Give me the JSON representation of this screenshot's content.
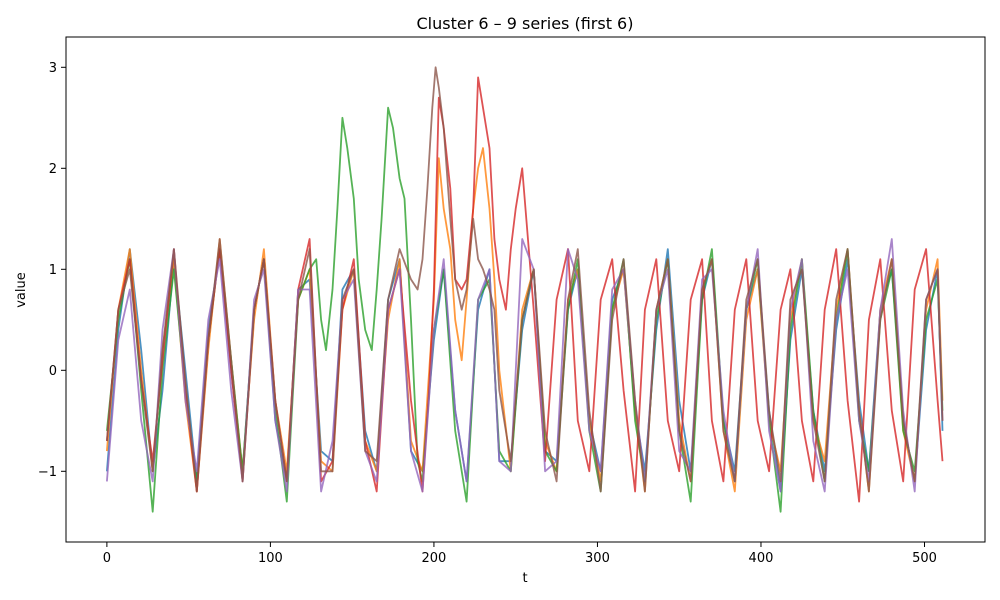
{
  "chart_data": {
    "type": "line",
    "title": "Cluster 6 – 9 series (first 6)",
    "xlabel": "t",
    "ylabel": "value",
    "xlim": [
      -25,
      537
    ],
    "ylim": [
      -1.7,
      3.3
    ],
    "xticks": [
      0,
      100,
      200,
      300,
      400,
      500
    ],
    "yticks": [
      -1,
      0,
      1,
      2,
      3
    ],
    "grid": false,
    "legend": "none",
    "colors": [
      "#1f77b4",
      "#ff7f0e",
      "#2ca02c",
      "#d62728",
      "#9467bd",
      "#8c564b"
    ],
    "line_alpha": 0.8,
    "series": [
      {
        "x": [
          0,
          7,
          14,
          21,
          28,
          34,
          41,
          48,
          55,
          62,
          69,
          76,
          83,
          90,
          96,
          103,
          110,
          117,
          124,
          131,
          138,
          144,
          151,
          158,
          165,
          172,
          179,
          186,
          193,
          200,
          206,
          213,
          220,
          227,
          234,
          240,
          247,
          254,
          261,
          268,
          275,
          282,
          288,
          295,
          302,
          309,
          316,
          323,
          329,
          336,
          343,
          350,
          357,
          364,
          370,
          377,
          384,
          391,
          398,
          405,
          412,
          418,
          425,
          432,
          439,
          446,
          453,
          460,
          466,
          473,
          480,
          487,
          494,
          501,
          508,
          511
        ],
        "y": [
          -1.0,
          0.4,
          1.2,
          0.2,
          -1.0,
          -0.2,
          1.1,
          0.0,
          -1.1,
          0.4,
          1.2,
          0.0,
          -1.0,
          0.6,
          1.1,
          -0.5,
          -1.1,
          0.8,
          0.9,
          -0.8,
          -0.9,
          0.8,
          1.0,
          -0.6,
          -1.0,
          0.7,
          1.1,
          -0.8,
          -1.0,
          0.3,
          1.0,
          -0.4,
          -1.1,
          0.6,
          1.0,
          -0.9,
          -0.9,
          0.4,
          1.0,
          -0.8,
          -0.9,
          0.6,
          1.0,
          -0.5,
          -1.0,
          0.7,
          1.0,
          -0.4,
          -1.0,
          0.4,
          1.2,
          -0.3,
          -1.0,
          0.7,
          1.1,
          -0.5,
          -1.0,
          0.6,
          1.0,
          -0.4,
          -1.2,
          0.3,
          1.0,
          -0.4,
          -1.0,
          0.4,
          1.1,
          -0.3,
          -1.0,
          0.6,
          1.0,
          -0.5,
          -1.1,
          0.4,
          1.0,
          -0.6
        ]
      },
      {
        "x": [
          0,
          7,
          14,
          21,
          28,
          34,
          41,
          48,
          55,
          62,
          69,
          76,
          83,
          90,
          96,
          103,
          110,
          117,
          124,
          131,
          138,
          144,
          151,
          158,
          165,
          172,
          179,
          186,
          193,
          200,
          203,
          206,
          210,
          213,
          217,
          220,
          224,
          227,
          230,
          234,
          237,
          240,
          247,
          254,
          261,
          268,
          275,
          282,
          288,
          295,
          302,
          309,
          316,
          323,
          329,
          336,
          343,
          350,
          357,
          364,
          370,
          377,
          384,
          391,
          398,
          405,
          412,
          418,
          425,
          432,
          439,
          446,
          453,
          460,
          466,
          473,
          480,
          487,
          494,
          501,
          508,
          511
        ],
        "y": [
          -0.8,
          0.6,
          1.2,
          0.0,
          -1.0,
          0.2,
          1.1,
          -0.3,
          -1.2,
          0.2,
          1.3,
          0.1,
          -1.0,
          0.5,
          1.2,
          -0.3,
          -1.0,
          0.7,
          1.0,
          -0.9,
          -1.0,
          0.6,
          1.0,
          -0.7,
          -1.0,
          0.5,
          1.1,
          -0.7,
          -1.0,
          0.7,
          2.1,
          1.6,
          1.2,
          0.5,
          0.1,
          0.7,
          1.6,
          2.0,
          2.2,
          1.6,
          0.9,
          0.0,
          -1.0,
          0.6,
          1.0,
          -0.7,
          -1.0,
          0.7,
          1.0,
          -0.5,
          -1.1,
          0.6,
          1.0,
          -0.4,
          -1.2,
          0.6,
          1.1,
          -0.5,
          -1.1,
          0.8,
          1.1,
          -0.6,
          -1.2,
          0.5,
          1.0,
          -0.5,
          -1.0,
          0.5,
          1.1,
          -0.5,
          -0.9,
          0.6,
          1.2,
          -0.4,
          -1.2,
          0.6,
          1.1,
          -0.6,
          -1.1,
          0.6,
          1.1,
          -0.3
        ]
      },
      {
        "x": [
          0,
          7,
          14,
          21,
          28,
          34,
          41,
          48,
          55,
          62,
          69,
          76,
          83,
          90,
          96,
          103,
          110,
          117,
          124,
          128,
          131,
          134,
          138,
          141,
          144,
          147,
          151,
          154,
          158,
          162,
          165,
          168,
          172,
          175,
          179,
          182,
          186,
          190,
          193,
          200,
          206,
          213,
          220,
          227,
          234,
          240,
          247,
          254,
          261,
          268,
          275,
          282,
          288,
          295,
          302,
          309,
          316,
          323,
          329,
          336,
          343,
          350,
          357,
          364,
          370,
          377,
          384,
          391,
          398,
          405,
          412,
          418,
          425,
          432,
          439,
          446,
          453,
          460,
          466,
          473,
          480,
          487,
          494,
          501,
          508,
          511
        ],
        "y": [
          -0.6,
          0.5,
          1.1,
          -0.2,
          -1.4,
          0.0,
          1.0,
          -0.2,
          -1.1,
          0.3,
          1.2,
          0.1,
          -1.0,
          0.6,
          1.1,
          -0.4,
          -1.3,
          0.7,
          1.0,
          1.1,
          0.5,
          0.2,
          0.8,
          1.6,
          2.5,
          2.2,
          1.7,
          0.9,
          0.4,
          0.2,
          0.8,
          1.5,
          2.6,
          2.4,
          1.9,
          1.7,
          0.5,
          -0.9,
          -1.1,
          0.4,
          1.0,
          -0.6,
          -1.3,
          0.7,
          0.9,
          -0.8,
          -1.0,
          0.5,
          1.0,
          -0.8,
          -1.0,
          0.6,
          1.1,
          -0.6,
          -1.2,
          0.6,
          1.1,
          -0.5,
          -1.1,
          0.5,
          1.1,
          -0.6,
          -1.3,
          0.7,
          1.2,
          -0.5,
          -1.1,
          0.6,
          1.1,
          -0.5,
          -1.4,
          0.4,
          1.1,
          -0.4,
          -1.1,
          0.5,
          1.2,
          -0.5,
          -1.0,
          0.5,
          1.0,
          -0.6,
          -1.0,
          0.5,
          0.9,
          -0.4
        ]
      },
      {
        "x": [
          0,
          7,
          14,
          21,
          28,
          34,
          41,
          48,
          55,
          62,
          69,
          76,
          83,
          90,
          96,
          103,
          110,
          117,
          124,
          131,
          138,
          144,
          151,
          158,
          165,
          172,
          179,
          186,
          193,
          197,
          200,
          203,
          206,
          210,
          213,
          217,
          220,
          224,
          227,
          230,
          234,
          237,
          240,
          244,
          247,
          250,
          254,
          261,
          268,
          275,
          282,
          288,
          295,
          302,
          309,
          316,
          323,
          329,
          336,
          343,
          350,
          357,
          364,
          370,
          377,
          384,
          391,
          398,
          405,
          412,
          418,
          425,
          432,
          439,
          446,
          453,
          460,
          466,
          473,
          480,
          487,
          494,
          501,
          508,
          511
        ],
        "y": [
          -0.7,
          0.6,
          1.1,
          -0.1,
          -0.9,
          0.1,
          1.2,
          -0.2,
          -1.2,
          0.3,
          1.2,
          0.0,
          -1.1,
          0.6,
          1.1,
          -0.3,
          -1.1,
          0.8,
          1.3,
          -1.1,
          -0.9,
          0.6,
          1.1,
          -0.7,
          -1.2,
          0.6,
          1.0,
          -0.3,
          -1.2,
          -0.2,
          0.8,
          2.7,
          2.4,
          1.8,
          0.9,
          0.8,
          0.9,
          1.6,
          2.9,
          2.6,
          2.2,
          1.3,
          0.9,
          0.6,
          1.2,
          1.6,
          2.0,
          0.6,
          -0.9,
          0.7,
          1.2,
          -0.5,
          -1.0,
          0.7,
          1.1,
          -0.2,
          -1.2,
          0.6,
          1.1,
          -0.5,
          -1.0,
          0.7,
          1.1,
          -0.5,
          -1.1,
          0.6,
          1.1,
          -0.5,
          -1.0,
          0.6,
          1.0,
          -0.5,
          -1.1,
          0.6,
          1.2,
          -0.3,
          -1.3,
          0.5,
          1.1,
          -0.4,
          -1.1,
          0.8,
          1.2,
          -0.3,
          -0.9
        ]
      },
      {
        "x": [
          0,
          7,
          14,
          21,
          28,
          34,
          41,
          48,
          55,
          62,
          69,
          76,
          83,
          90,
          96,
          103,
          110,
          117,
          124,
          131,
          138,
          144,
          151,
          158,
          165,
          172,
          179,
          186,
          193,
          200,
          206,
          213,
          220,
          227,
          234,
          240,
          247,
          254,
          261,
          268,
          275,
          282,
          288,
          295,
          302,
          309,
          316,
          323,
          329,
          336,
          343,
          350,
          357,
          364,
          370,
          377,
          384,
          391,
          398,
          405,
          412,
          418,
          425,
          432,
          439,
          446,
          453,
          460,
          466,
          473,
          480,
          487,
          494,
          501,
          508,
          511
        ],
        "y": [
          -1.1,
          0.3,
          0.8,
          -0.5,
          -1.1,
          0.4,
          1.2,
          -0.3,
          -1.0,
          0.5,
          1.1,
          -0.2,
          -1.1,
          0.7,
          1.0,
          -0.5,
          -1.2,
          0.8,
          0.8,
          -1.2,
          -0.7,
          0.7,
          0.9,
          -0.8,
          -1.1,
          0.6,
          1.0,
          -0.8,
          -1.2,
          0.4,
          1.1,
          -0.4,
          -1.1,
          0.7,
          1.0,
          -0.9,
          -1.0,
          1.3,
          1.0,
          -1.0,
          -0.9,
          1.2,
          0.9,
          -0.6,
          -1.0,
          0.8,
          1.0,
          -0.3,
          -1.1,
          0.6,
          1.0,
          -0.8,
          -1.0,
          0.9,
          1.0,
          -0.4,
          -1.1,
          0.6,
          1.2,
          -0.6,
          -1.2,
          0.6,
          1.1,
          -0.7,
          -1.2,
          0.5,
          1.0,
          -0.5,
          -1.1,
          0.6,
          1.3,
          -0.4,
          -1.2,
          0.7,
          1.0,
          -0.5
        ]
      },
      {
        "x": [
          0,
          7,
          14,
          21,
          28,
          34,
          41,
          48,
          55,
          62,
          69,
          76,
          83,
          90,
          96,
          103,
          110,
          117,
          124,
          131,
          138,
          144,
          151,
          158,
          165,
          172,
          179,
          186,
          190,
          193,
          196,
          199,
          201,
          203,
          206,
          210,
          213,
          217,
          220,
          224,
          227,
          230,
          234,
          237,
          240,
          247,
          254,
          261,
          268,
          275,
          282,
          288,
          295,
          302,
          309,
          316,
          323,
          329,
          336,
          343,
          350,
          357,
          364,
          370,
          377,
          384,
          391,
          398,
          405,
          412,
          418,
          425,
          432,
          439,
          446,
          453,
          460,
          466,
          473,
          480,
          487,
          494,
          501,
          508,
          511
        ],
        "y": [
          -0.7,
          0.6,
          1.0,
          -0.1,
          -1.0,
          0.2,
          1.2,
          -0.1,
          -1.2,
          0.3,
          1.3,
          0.1,
          -1.1,
          0.6,
          1.1,
          -0.3,
          -1.1,
          0.7,
          1.2,
          -1.0,
          -1.0,
          0.7,
          1.0,
          -0.8,
          -0.9,
          0.7,
          1.2,
          0.9,
          0.8,
          1.1,
          1.8,
          2.6,
          3.0,
          2.8,
          2.4,
          1.5,
          0.9,
          0.6,
          0.8,
          1.5,
          1.1,
          1.0,
          0.8,
          0.6,
          -0.2,
          -0.9,
          0.5,
          1.0,
          -0.6,
          -1.1,
          0.7,
          1.2,
          -0.4,
          -1.2,
          0.5,
          1.1,
          -0.3,
          -1.2,
          0.6,
          1.1,
          -0.6,
          -1.1,
          0.8,
          1.1,
          -0.6,
          -1.1,
          0.7,
          1.1,
          -0.4,
          -1.1,
          0.7,
          1.0,
          -0.5,
          -1.1,
          0.7,
          1.2,
          -0.4,
          -1.2,
          0.5,
          1.1,
          -0.5,
          -1.1,
          0.7,
          1.0,
          -0.5
        ]
      }
    ]
  }
}
